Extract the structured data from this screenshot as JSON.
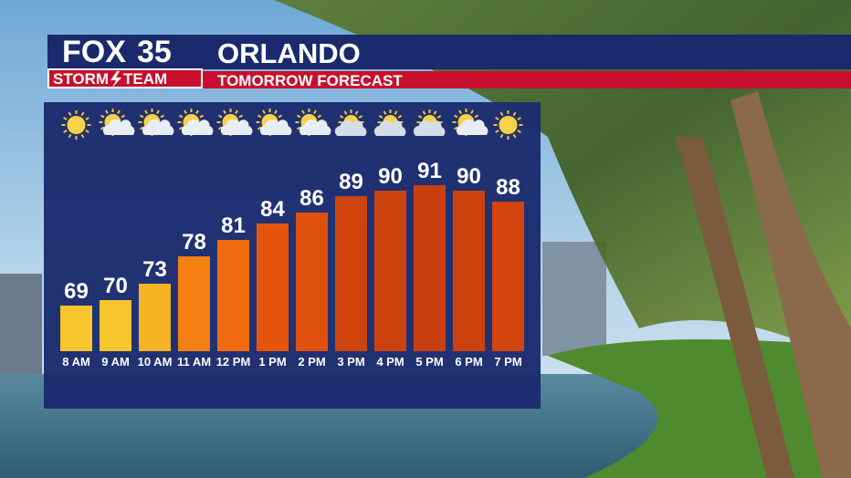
{
  "header": {
    "logo_fox": "FOX",
    "logo_number": "35",
    "logo_storm": "STORM",
    "logo_team": "TEAM",
    "location": "ORLANDO",
    "subtitle": "TOMORROW FORECAST"
  },
  "chart_data": {
    "type": "bar",
    "categories": [
      "8 AM",
      "9 AM",
      "10 AM",
      "11 AM",
      "12 PM",
      "1 PM",
      "2 PM",
      "3 PM",
      "4 PM",
      "5 PM",
      "6 PM",
      "7 PM"
    ],
    "values": [
      69,
      70,
      73,
      78,
      81,
      84,
      86,
      89,
      90,
      91,
      90,
      88
    ],
    "colors": [
      "#f7c52c",
      "#f7c52c",
      "#f6b324",
      "#f47f13",
      "#f06b0f",
      "#e6540c",
      "#e0500d",
      "#cf430e",
      "#cc420f",
      "#c93f0f",
      "#cc420f",
      "#d2450e"
    ]
  }
}
